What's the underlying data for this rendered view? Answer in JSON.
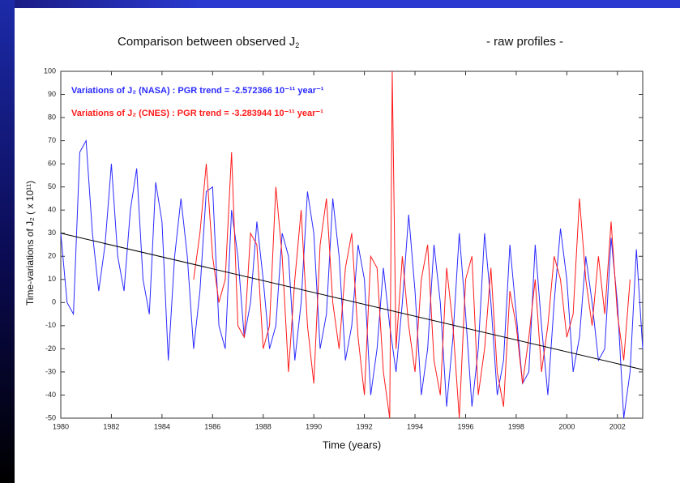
{
  "chart_data": {
    "type": "line",
    "title": "Comparison between observed J",
    "title_subscript": "2",
    "subtitle": "- raw profiles -",
    "x_label": "Time (years)",
    "y_label": "Time-variations of J₂ ( x 10¹¹)",
    "xlim": [
      1980,
      2003
    ],
    "ylim": [
      -50,
      100
    ],
    "xticks": [
      1980,
      1982,
      1984,
      1986,
      1988,
      1990,
      1992,
      1994,
      1996,
      1998,
      2000,
      2002
    ],
    "yticks": [
      -50,
      -40,
      -30,
      -20,
      -10,
      0,
      10,
      20,
      30,
      40,
      50,
      60,
      70,
      80,
      90,
      100
    ],
    "legend": "upper left",
    "series": [
      {
        "name": "Variations of J₂ (NASA) : PGR trend = -2.572366 10⁻¹¹ year⁻¹",
        "color": "#2a2aff",
        "x": [
          1980,
          1980.25,
          1980.5,
          1980.75,
          1981,
          1981.25,
          1981.5,
          1981.75,
          1982,
          1982.25,
          1982.5,
          1982.75,
          1983,
          1983.25,
          1983.5,
          1983.75,
          1984,
          1984.25,
          1984.5,
          1984.75,
          1985,
          1985.25,
          1985.5,
          1985.75,
          1986,
          1986.25,
          1986.5,
          1986.75,
          1987,
          1987.25,
          1987.5,
          1987.75,
          1988,
          1988.25,
          1988.5,
          1988.75,
          1989,
          1989.25,
          1989.5,
          1989.75,
          1990,
          1990.25,
          1990.5,
          1990.75,
          1991,
          1991.25,
          1991.5,
          1991.75,
          1992,
          1992.25,
          1992.5,
          1992.75,
          1993,
          1993.25,
          1993.5,
          1993.75,
          1994,
          1994.25,
          1994.5,
          1994.75,
          1995,
          1995.25,
          1995.5,
          1995.75,
          1996,
          1996.25,
          1996.5,
          1996.75,
          1997,
          1997.25,
          1997.5,
          1997.75,
          1998,
          1998.25,
          1998.5,
          1998.75,
          1999,
          1999.25,
          1999.5,
          1999.75,
          2000,
          2000.25,
          2000.5,
          2000.75,
          2001,
          2001.25,
          2001.5,
          2001.75,
          2002,
          2002.25,
          2002.5,
          2002.75,
          2003
        ],
        "values": [
          30,
          0,
          -5,
          65,
          70,
          30,
          5,
          25,
          60,
          20,
          5,
          40,
          58,
          10,
          -5,
          52,
          35,
          -25,
          20,
          45,
          20,
          -20,
          5,
          48,
          50,
          -10,
          -20,
          40,
          20,
          -15,
          0,
          35,
          10,
          -20,
          -10,
          30,
          20,
          -25,
          0,
          48,
          30,
          -20,
          -5,
          45,
          20,
          -25,
          -10,
          25,
          10,
          -40,
          -20,
          15,
          -10,
          -30,
          0,
          38,
          5,
          -40,
          -20,
          25,
          0,
          -45,
          -15,
          30,
          -5,
          -45,
          -20,
          30,
          0,
          -40,
          -25,
          25,
          -5,
          -35,
          -30,
          25,
          -10,
          -40,
          0,
          32,
          10,
          -30,
          -15,
          20,
          0,
          -25,
          -20,
          28,
          0,
          -50,
          -30,
          23,
          -20
        ]
      },
      {
        "name": "Variations of J₂ (CNES) : PGR trend = -3.283944 10⁻¹¹ year⁻¹",
        "color": "#ff1a1a",
        "x": [
          1985.25,
          1985.5,
          1985.75,
          1986,
          1986.25,
          1986.5,
          1986.75,
          1987,
          1987.25,
          1987.5,
          1987.75,
          1988,
          1988.25,
          1988.5,
          1988.75,
          1989,
          1989.25,
          1989.5,
          1989.75,
          1990,
          1990.25,
          1990.5,
          1990.75,
          1991,
          1991.25,
          1991.5,
          1991.75,
          1992,
          1992.25,
          1992.5,
          1992.75,
          1993,
          1993.1,
          1993.25,
          1993.5,
          1993.75,
          1994,
          1994.25,
          1994.5,
          1994.75,
          1995,
          1995.25,
          1995.5,
          1995.75,
          1996,
          1996.25,
          1996.5,
          1996.75,
          1997,
          1997.25,
          1997.5,
          1997.75,
          1998,
          1998.25,
          1998.5,
          1998.75,
          1999,
          1999.25,
          1999.5,
          1999.75,
          2000,
          2000.25,
          2000.5,
          2000.75,
          2001,
          2001.25,
          2001.5,
          2001.75,
          2002,
          2002.25,
          2002.5
        ],
        "values": [
          10,
          30,
          60,
          20,
          0,
          10,
          65,
          -10,
          -15,
          30,
          25,
          -20,
          -10,
          50,
          20,
          -30,
          10,
          40,
          -10,
          -35,
          25,
          45,
          0,
          -20,
          15,
          30,
          -15,
          -40,
          20,
          15,
          -30,
          -50,
          100,
          -20,
          20,
          -10,
          -30,
          10,
          25,
          -25,
          -40,
          15,
          -10,
          -50,
          10,
          20,
          -40,
          -20,
          15,
          -30,
          -45,
          5,
          -10,
          -35,
          -15,
          10,
          -30,
          -10,
          20,
          10,
          -15,
          -5,
          45,
          10,
          -10,
          20,
          -5,
          35,
          -5,
          -25,
          10
        ]
      }
    ],
    "trend": {
      "x": [
        1980,
        2003
      ],
      "values": [
        30,
        -29
      ],
      "color": "#000000"
    }
  }
}
